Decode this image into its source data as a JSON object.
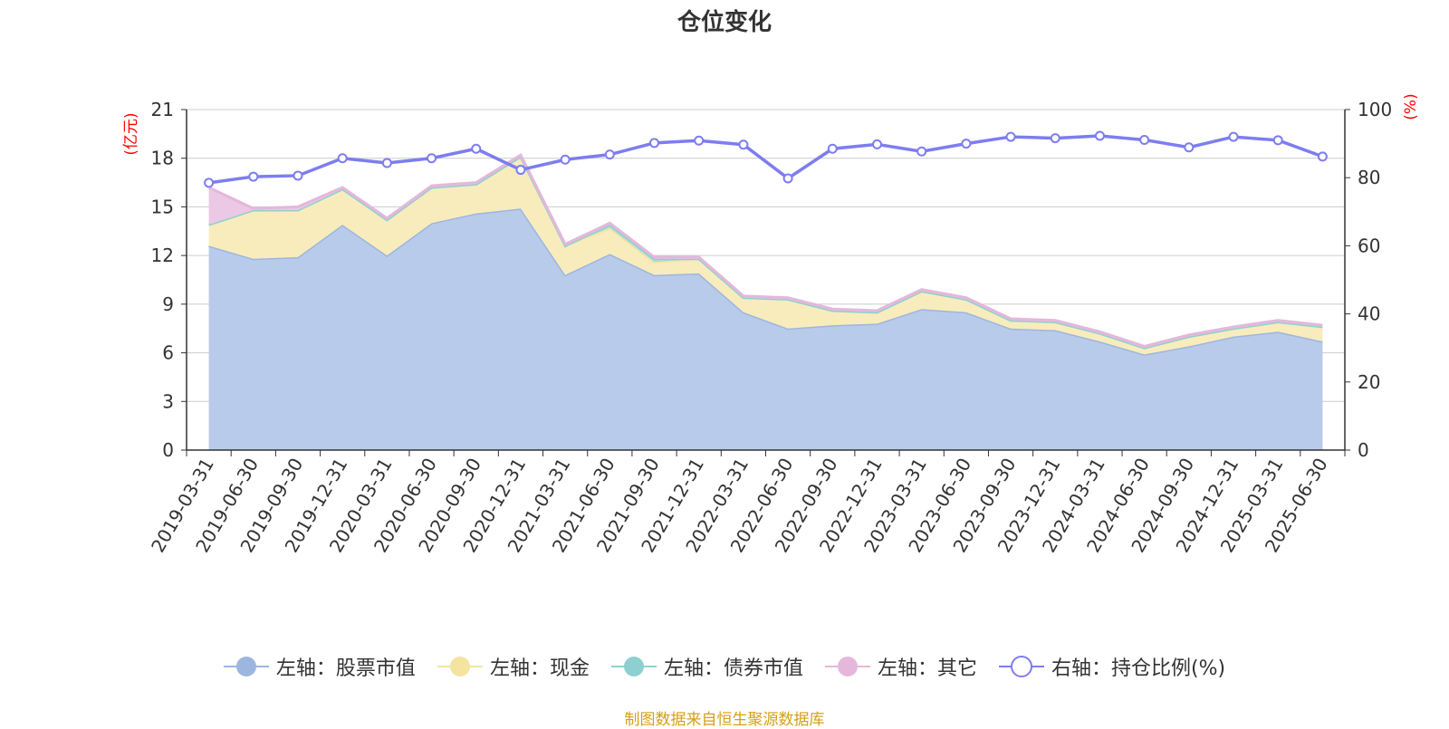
{
  "chart_data": {
    "type": "area",
    "title": "仓位变化",
    "y_left_unit": "(亿元)",
    "y_right_unit": "(%)",
    "ylim_left": [
      0,
      21
    ],
    "yticks_left": [
      "0",
      "3",
      "6",
      "9",
      "12",
      "15",
      "18",
      "21"
    ],
    "ylim_right": [
      0,
      100
    ],
    "yticks_right": [
      "0",
      "20",
      "40",
      "60",
      "80",
      "100"
    ],
    "categories": [
      "2019-03-31",
      "2019-06-30",
      "2019-09-30",
      "2019-12-31",
      "2020-03-31",
      "2020-06-30",
      "2020-09-30",
      "2020-12-31",
      "2021-03-31",
      "2021-06-30",
      "2021-09-30",
      "2021-12-31",
      "2022-03-31",
      "2022-06-30",
      "2022-09-30",
      "2022-12-31",
      "2023-03-31",
      "2023-06-30",
      "2023-09-30",
      "2023-12-31",
      "2024-03-31",
      "2024-06-30",
      "2024-09-30",
      "2024-12-31",
      "2025-03-31",
      "2025-06-30"
    ],
    "grid": true,
    "legend_position": "bottom",
    "series": [
      {
        "name": "左轴：股票市值",
        "axis": "left",
        "stacked": true,
        "color": "#9db6e0",
        "fill": "#b8cbea",
        "values": [
          12.6,
          11.8,
          11.9,
          13.9,
          12.0,
          14.0,
          14.6,
          14.9,
          10.8,
          12.1,
          10.8,
          10.9,
          8.5,
          7.5,
          7.7,
          7.8,
          8.7,
          8.5,
          7.5,
          7.4,
          6.7,
          5.9,
          6.4,
          7.0,
          7.3,
          6.7
        ]
      },
      {
        "name": "左轴：现金",
        "axis": "left",
        "stacked": true,
        "color": "#f5e3a0",
        "fill": "#f8ecbd",
        "values": [
          1.3,
          3.0,
          2.9,
          2.2,
          2.2,
          2.2,
          1.8,
          3.2,
          1.8,
          1.6,
          0.8,
          0.9,
          0.9,
          1.8,
          0.9,
          0.7,
          1.1,
          0.8,
          0.5,
          0.5,
          0.5,
          0.4,
          0.6,
          0.5,
          0.6,
          0.9
        ]
      },
      {
        "name": "左轴：债券市值",
        "axis": "left",
        "stacked": true,
        "color": "#8ed0d0",
        "fill": "#a9dcdc",
        "values": [
          0,
          0,
          0,
          0,
          0,
          0,
          0,
          0,
          0,
          0.2,
          0.2,
          0,
          0,
          0,
          0,
          0,
          0,
          0,
          0,
          0,
          0,
          0,
          0,
          0,
          0,
          0
        ]
      },
      {
        "name": "左轴：其它",
        "axis": "left",
        "stacked": true,
        "color": "#e5b7db",
        "fill": "#ebc8e3",
        "values": [
          2.3,
          0.1,
          0.2,
          0.1,
          0.1,
          0.1,
          0.1,
          0.1,
          0.1,
          0.1,
          0.1,
          0.1,
          0.1,
          0.1,
          0.1,
          0.1,
          0.1,
          0.1,
          0.1,
          0.1,
          0.1,
          0.1,
          0.1,
          0.1,
          0.1,
          0.1
        ]
      },
      {
        "name": "右轴：持仓比例(%)",
        "axis": "right",
        "stacked": false,
        "type": "line",
        "color": "#7d7df0",
        "values": [
          78.5,
          80.3,
          80.6,
          85.7,
          84.3,
          85.7,
          88.5,
          82.3,
          85.3,
          86.8,
          90.2,
          90.9,
          89.7,
          79.8,
          88.5,
          89.8,
          87.7,
          90.0,
          92.0,
          91.6,
          92.3,
          91.1,
          88.9,
          92.0,
          91.0,
          86.2
        ]
      }
    ]
  },
  "footer": {
    "source": "制图数据来自恒生聚源数据库"
  }
}
